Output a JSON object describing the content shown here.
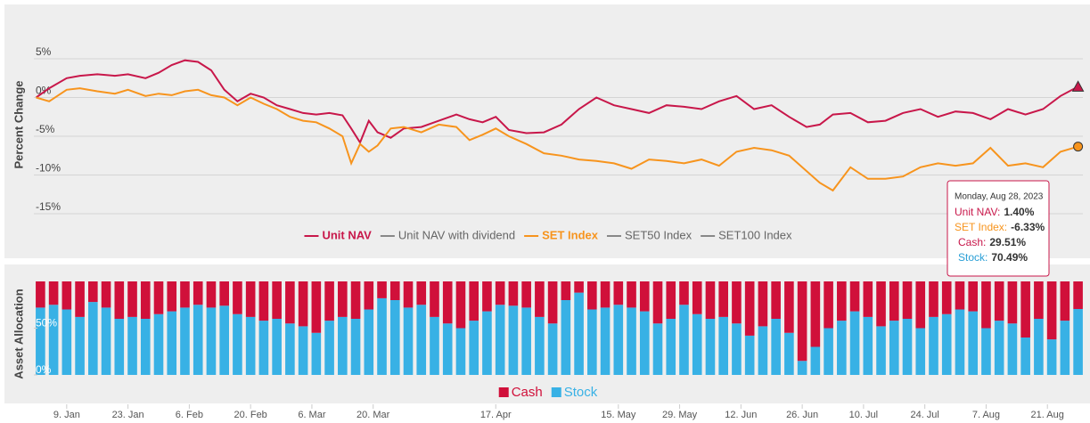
{
  "chart_data": [
    {
      "type": "line",
      "ylabel": "Percent Change",
      "x": [
        2,
        5,
        9,
        12,
        16,
        20,
        23,
        27,
        30,
        33,
        36,
        39,
        42,
        45,
        48,
        51,
        54,
        57,
        60,
        63,
        66,
        69,
        72,
        74,
        76,
        78,
        80,
        83,
        86,
        90,
        94,
        98,
        101,
        104,
        107,
        110,
        114,
        118,
        122,
        126,
        130,
        134,
        138,
        142,
        146,
        150,
        154,
        158,
        162,
        166,
        170,
        174,
        178,
        181,
        184,
        188,
        192,
        196,
        200,
        204,
        208,
        212,
        216,
        220,
        224,
        228,
        232,
        236,
        240
      ],
      "series": [
        {
          "name": "Unit NAV",
          "color": "#c8174a",
          "marker": "triangle",
          "values": [
            0,
            1.2,
            2.5,
            2.8,
            3.0,
            2.8,
            3.0,
            2.5,
            3.2,
            4.2,
            4.8,
            4.6,
            3.5,
            1.0,
            -0.5,
            0.5,
            0,
            -1.0,
            -1.5,
            -2.0,
            -2.2,
            -2.0,
            -2.3,
            -4.0,
            -5.8,
            -3.0,
            -4.5,
            -5.2,
            -4.0,
            -3.8,
            -3.0,
            -2.2,
            -2.8,
            -3.2,
            -2.5,
            -4.2,
            -4.6,
            -4.5,
            -3.5,
            -1.5,
            0,
            -1.0,
            -1.5,
            -2.0,
            -1.0,
            -1.2,
            -1.5,
            -0.5,
            0.2,
            -1.5,
            -1.0,
            -2.5,
            -3.8,
            -3.5,
            -2.2,
            -2.0,
            -3.2,
            -3.0,
            -2.0,
            -1.5,
            -2.5,
            -1.8,
            -2.0,
            -2.8,
            -1.5,
            -2.2,
            -1.5,
            0.2,
            1.4
          ]
        },
        {
          "name": "Unit NAV with dividend",
          "color": "#888888",
          "values": [
            null,
            null,
            null,
            null,
            null,
            null,
            null,
            null,
            null,
            null,
            null,
            null,
            null,
            null,
            null,
            null,
            null,
            null,
            null,
            null,
            null,
            null,
            null,
            null,
            null,
            null,
            null,
            null,
            null,
            null,
            null,
            null,
            null,
            null,
            null,
            null,
            null,
            null,
            null,
            null,
            null,
            null,
            null,
            null,
            null,
            null,
            null,
            null,
            null,
            null,
            null,
            null,
            null,
            null,
            null,
            null,
            null,
            null,
            null,
            null,
            null,
            null,
            null,
            null,
            null,
            null,
            null,
            null,
            null
          ]
        },
        {
          "name": "SET Index",
          "color": "#f7941d",
          "marker": "circle",
          "values": [
            0,
            -0.5,
            1.0,
            1.2,
            0.8,
            0.5,
            1.0,
            0.2,
            0.5,
            0.3,
            0.8,
            1.0,
            0.3,
            0,
            -1.0,
            0,
            -0.8,
            -1.5,
            -2.5,
            -3.0,
            -3.2,
            -4.0,
            -5.0,
            -8.5,
            -6.0,
            -7.0,
            -6.2,
            -4.0,
            -3.8,
            -4.5,
            -3.5,
            -3.8,
            -5.5,
            -4.8,
            -4.0,
            -5.0,
            -6.0,
            -7.2,
            -7.5,
            -8.0,
            -8.2,
            -8.5,
            -9.2,
            -8.0,
            -8.2,
            -8.5,
            -8.0,
            -8.8,
            -7.0,
            -6.5,
            -6.8,
            -7.5,
            -9.5,
            -11.0,
            -12.0,
            -9.0,
            -10.5,
            -10.5,
            -10.2,
            -9.0,
            -8.5,
            -8.8,
            -8.5,
            -6.5,
            -8.8,
            -8.5,
            -9.0,
            -7.0,
            -6.33
          ]
        },
        {
          "name": "SET50 Index",
          "color": "#888888",
          "values": [
            null,
            null,
            null,
            null,
            null,
            null,
            null,
            null,
            null,
            null,
            null,
            null,
            null,
            null,
            null,
            null,
            null,
            null,
            null,
            null,
            null,
            null,
            null,
            null,
            null,
            null,
            null,
            null,
            null,
            null,
            null,
            null,
            null,
            null,
            null,
            null,
            null,
            null,
            null,
            null,
            null,
            null,
            null,
            null,
            null,
            null,
            null,
            null,
            null,
            null,
            null,
            null,
            null,
            null,
            null,
            null,
            null,
            null,
            null,
            null,
            null,
            null,
            null,
            null,
            null,
            null,
            null,
            null,
            null
          ]
        },
        {
          "name": "SET100 Index",
          "color": "#888888",
          "values": [
            null,
            null,
            null,
            null,
            null,
            null,
            null,
            null,
            null,
            null,
            null,
            null,
            null,
            null,
            null,
            null,
            null,
            null,
            null,
            null,
            null,
            null,
            null,
            null,
            null,
            null,
            null,
            null,
            null,
            null,
            null,
            null,
            null,
            null,
            null,
            null,
            null,
            null,
            null,
            null,
            null,
            null,
            null,
            null,
            null,
            null,
            null,
            null,
            null,
            null,
            null,
            null,
            null,
            null,
            null,
            null,
            null,
            null,
            null,
            null,
            null,
            null,
            null,
            null,
            null,
            null,
            null,
            null,
            null
          ]
        }
      ],
      "xlim": [
        1.5,
        241.1
      ],
      "ylim": [
        -17,
        10
      ],
      "yticks": [
        {
          "value": 5,
          "label": "5%"
        },
        {
          "value": 0,
          "label": "0%"
        },
        {
          "value": -5,
          "label": "-5%"
        },
        {
          "value": -10,
          "label": "-10%"
        },
        {
          "value": -15,
          "label": "-15%"
        }
      ],
      "grid": true,
      "tooltip": {
        "title": "Monday, Aug 28, 2023",
        "items": [
          {
            "label": "Unit NAV:",
            "value": "1.40%",
            "color": "#c8174a"
          },
          {
            "label": "SET Index:",
            "value": "-6.33%",
            "color": "#f7941d"
          },
          {
            "label": "Cash:",
            "value": "29.51%",
            "color": "#c8174a"
          },
          {
            "label": "Stock:",
            "value": "70.49%",
            "color": "#2a9fd6"
          }
        ]
      }
    },
    {
      "type": "stacked_bar",
      "ylabel": "Asset Allocation",
      "x": [
        3,
        6,
        9,
        12,
        15,
        18,
        21,
        24,
        27,
        30,
        33,
        36,
        39,
        42,
        45,
        48,
        51,
        54,
        57,
        60,
        63,
        66,
        69,
        72,
        75,
        78,
        81,
        84,
        87,
        90,
        93,
        96,
        99,
        102,
        105,
        108,
        111,
        114,
        117,
        120,
        123,
        126,
        129,
        132,
        135,
        138,
        141,
        144,
        147,
        150,
        153,
        156,
        159,
        162,
        165,
        168,
        171,
        174,
        177,
        180,
        183,
        186,
        189,
        192,
        195,
        198,
        201,
        204,
        207,
        210,
        213,
        216,
        219,
        222,
        225,
        228,
        231,
        234,
        237,
        240
      ],
      "series": [
        {
          "name": "Cash",
          "color": "#d0103a",
          "values": [
            28,
            25,
            30,
            38,
            22,
            28,
            40,
            38,
            40,
            35,
            32,
            28,
            25,
            28,
            26,
            35,
            38,
            42,
            40,
            45,
            48,
            55,
            42,
            38,
            40,
            30,
            18,
            20,
            28,
            25,
            38,
            45,
            50,
            42,
            32,
            25,
            26,
            28,
            38,
            45,
            20,
            12,
            30,
            28,
            25,
            28,
            32,
            45,
            40,
            25,
            35,
            40,
            38,
            45,
            58,
            48,
            40,
            55,
            85,
            70,
            50,
            42,
            32,
            38,
            48,
            42,
            40,
            50,
            38,
            35,
            30,
            32,
            50,
            42,
            45,
            60,
            40,
            62,
            42,
            29.51
          ]
        },
        {
          "name": "Stock",
          "color": "#38b1e5",
          "values": [
            72,
            75,
            70,
            62,
            78,
            72,
            60,
            62,
            60,
            65,
            68,
            72,
            75,
            72,
            74,
            65,
            62,
            58,
            60,
            55,
            52,
            45,
            58,
            62,
            60,
            70,
            82,
            80,
            72,
            75,
            62,
            55,
            50,
            58,
            68,
            75,
            74,
            72,
            62,
            55,
            80,
            88,
            70,
            72,
            75,
            72,
            68,
            55,
            60,
            75,
            65,
            60,
            62,
            55,
            42,
            52,
            60,
            45,
            15,
            30,
            50,
            58,
            68,
            62,
            52,
            58,
            60,
            50,
            62,
            65,
            70,
            68,
            50,
            58,
            55,
            40,
            60,
            38,
            58,
            70.49
          ]
        }
      ],
      "xlim": [
        1.5,
        241.1
      ],
      "ylim": [
        0,
        100
      ],
      "yticks": [
        {
          "value": 0,
          "label": "0%"
        },
        {
          "value": 50,
          "label": "50%"
        }
      ],
      "xticks": [
        {
          "value": 9,
          "label": "9. Jan"
        },
        {
          "value": 23,
          "label": "23. Jan"
        },
        {
          "value": 37,
          "label": "6. Feb"
        },
        {
          "value": 51,
          "label": "20. Feb"
        },
        {
          "value": 65,
          "label": "6. Mar"
        },
        {
          "value": 79,
          "label": "20. Mar"
        },
        {
          "value": 107,
          "label": "17. Apr"
        },
        {
          "value": 135,
          "label": "15. May"
        },
        {
          "value": 149,
          "label": "29. May"
        },
        {
          "value": 163,
          "label": "12. Jun"
        },
        {
          "value": 177,
          "label": "26. Jun"
        },
        {
          "value": 191,
          "label": "10. Jul"
        },
        {
          "value": 205,
          "label": "24. Jul"
        },
        {
          "value": 219,
          "label": "7. Aug"
        },
        {
          "value": 233,
          "label": "21. Aug"
        }
      ]
    }
  ]
}
